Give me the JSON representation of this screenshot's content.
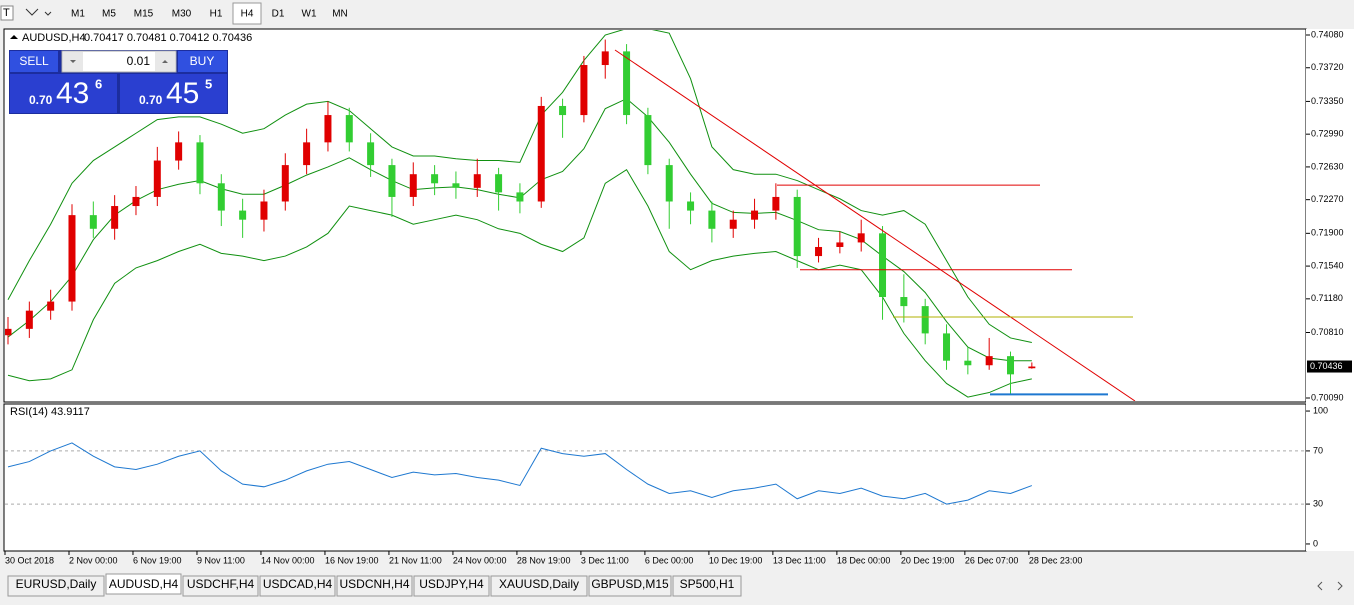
{
  "toolbar": {
    "timeframes": [
      "M1",
      "M5",
      "M15",
      "M30",
      "H1",
      "H4",
      "D1",
      "W1",
      "MN"
    ]
  },
  "trade_panel": {
    "sell": "SELL",
    "buy": "BUY",
    "lots": "0.01",
    "bid_prefix": "0.70",
    "bid_big": "43",
    "bid_small": "6",
    "ask_prefix": "0.70",
    "ask_big": "45",
    "ask_small": "5"
  },
  "tabs": [
    "EURUSD,Daily",
    "AUDUSD,H4",
    "USDCHF,H4",
    "USDCAD,H4",
    "USDCNH,H4",
    "USDJPY,H4",
    "XAUUSD,Daily",
    "GBPUSD,M15",
    "SP500,H1"
  ],
  "chart_data": [
    {
      "type": "candlestick",
      "title": "AUDUSD,H4",
      "ohlc_text": "0.70417 0.70481 0.70412 0.70436",
      "categories": [
        "30 Oct 2018",
        null,
        null,
        "2 Nov 00:00",
        null,
        null,
        "6 Nov 19:00",
        null,
        null,
        "9 Nov 11:00",
        null,
        null,
        "14 Nov 00:00",
        null,
        null,
        "16 Nov 19:00",
        null,
        null,
        "21 Nov 11:00",
        null,
        null,
        "24 Nov 00:00",
        null,
        null,
        "28 Nov 19:00",
        null,
        null,
        "3 Dec 11:00",
        null,
        null,
        "6 Dec 00:00",
        null,
        null,
        "10 Dec 19:00",
        null,
        null,
        "13 Dec 11:00",
        null,
        null,
        "18 Dec 00:00",
        null,
        null,
        "20 Dec 19:00",
        null,
        null,
        "26 Dec 07:00",
        null,
        null,
        "28 Dec 23:00"
      ],
      "candles": [
        {
          "o": 0.7078,
          "h": 0.7098,
          "l": 0.7068,
          "c": 0.7085
        },
        {
          "o": 0.7085,
          "h": 0.7115,
          "l": 0.7075,
          "c": 0.7105
        },
        {
          "o": 0.7105,
          "h": 0.7128,
          "l": 0.7095,
          "c": 0.7115
        },
        {
          "o": 0.7115,
          "h": 0.7222,
          "l": 0.7105,
          "c": 0.721
        },
        {
          "o": 0.721,
          "h": 0.7225,
          "l": 0.7185,
          "c": 0.7195
        },
        {
          "o": 0.7195,
          "h": 0.7232,
          "l": 0.7183,
          "c": 0.722
        },
        {
          "o": 0.722,
          "h": 0.7242,
          "l": 0.721,
          "c": 0.723
        },
        {
          "o": 0.723,
          "h": 0.7285,
          "l": 0.722,
          "c": 0.727
        },
        {
          "o": 0.727,
          "h": 0.7302,
          "l": 0.726,
          "c": 0.729
        },
        {
          "o": 0.729,
          "h": 0.7298,
          "l": 0.7233,
          "c": 0.7245
        },
        {
          "o": 0.7245,
          "h": 0.7255,
          "l": 0.7198,
          "c": 0.7215
        },
        {
          "o": 0.7215,
          "h": 0.7228,
          "l": 0.7185,
          "c": 0.7205
        },
        {
          "o": 0.7205,
          "h": 0.7238,
          "l": 0.7192,
          "c": 0.7225
        },
        {
          "o": 0.7225,
          "h": 0.7278,
          "l": 0.7215,
          "c": 0.7265
        },
        {
          "o": 0.7265,
          "h": 0.7305,
          "l": 0.7255,
          "c": 0.729
        },
        {
          "o": 0.729,
          "h": 0.7335,
          "l": 0.728,
          "c": 0.732
        },
        {
          "o": 0.732,
          "h": 0.7328,
          "l": 0.728,
          "c": 0.729
        },
        {
          "o": 0.729,
          "h": 0.73,
          "l": 0.7252,
          "c": 0.7265
        },
        {
          "o": 0.7265,
          "h": 0.7272,
          "l": 0.7208,
          "c": 0.723
        },
        {
          "o": 0.723,
          "h": 0.7268,
          "l": 0.722,
          "c": 0.7255
        },
        {
          "o": 0.7255,
          "h": 0.7265,
          "l": 0.7232,
          "c": 0.7245
        },
        {
          "o": 0.7245,
          "h": 0.7258,
          "l": 0.7228,
          "c": 0.724
        },
        {
          "o": 0.724,
          "h": 0.7272,
          "l": 0.723,
          "c": 0.7255
        },
        {
          "o": 0.7255,
          "h": 0.7262,
          "l": 0.7215,
          "c": 0.7235
        },
        {
          "o": 0.7235,
          "h": 0.7245,
          "l": 0.7212,
          "c": 0.7225
        },
        {
          "o": 0.7225,
          "h": 0.734,
          "l": 0.7218,
          "c": 0.733
        },
        {
          "o": 0.733,
          "h": 0.7338,
          "l": 0.7295,
          "c": 0.732
        },
        {
          "o": 0.732,
          "h": 0.7385,
          "l": 0.7312,
          "c": 0.7375
        },
        {
          "o": 0.7375,
          "h": 0.7403,
          "l": 0.736,
          "c": 0.739
        },
        {
          "o": 0.739,
          "h": 0.7398,
          "l": 0.731,
          "c": 0.732
        },
        {
          "o": 0.732,
          "h": 0.7328,
          "l": 0.7255,
          "c": 0.7265
        },
        {
          "o": 0.7265,
          "h": 0.7272,
          "l": 0.7195,
          "c": 0.7225
        },
        {
          "o": 0.7225,
          "h": 0.7235,
          "l": 0.72,
          "c": 0.7215
        },
        {
          "o": 0.7215,
          "h": 0.7225,
          "l": 0.718,
          "c": 0.7195
        },
        {
          "o": 0.7195,
          "h": 0.7215,
          "l": 0.7185,
          "c": 0.7205
        },
        {
          "o": 0.7205,
          "h": 0.7228,
          "l": 0.7195,
          "c": 0.7215
        },
        {
          "o": 0.7215,
          "h": 0.7245,
          "l": 0.7205,
          "c": 0.723
        },
        {
          "o": 0.723,
          "h": 0.7238,
          "l": 0.7152,
          "c": 0.7165
        },
        {
          "o": 0.7165,
          "h": 0.7185,
          "l": 0.7158,
          "c": 0.7175
        },
        {
          "o": 0.7175,
          "h": 0.7192,
          "l": 0.7168,
          "c": 0.718
        },
        {
          "o": 0.718,
          "h": 0.7205,
          "l": 0.717,
          "c": 0.719
        },
        {
          "o": 0.719,
          "h": 0.7198,
          "l": 0.7095,
          "c": 0.712
        },
        {
          "o": 0.712,
          "h": 0.7145,
          "l": 0.7092,
          "c": 0.711
        },
        {
          "o": 0.711,
          "h": 0.7118,
          "l": 0.7068,
          "c": 0.708
        },
        {
          "o": 0.708,
          "h": 0.709,
          "l": 0.704,
          "c": 0.705
        },
        {
          "o": 0.705,
          "h": 0.7065,
          "l": 0.7035,
          "c": 0.7045
        },
        {
          "o": 0.7045,
          "h": 0.7075,
          "l": 0.704,
          "c": 0.7055
        },
        {
          "o": 0.7055,
          "h": 0.706,
          "l": 0.7013,
          "c": 0.7035
        },
        {
          "o": 0.70417,
          "h": 0.70481,
          "l": 0.70412,
          "c": 0.70436
        }
      ],
      "bull_color": "#e00000",
      "bear_color": "#32cd32",
      "band_color": "#109010",
      "bands": {
        "upper": [
          0.7117,
          0.716,
          0.72,
          0.7245,
          0.727,
          0.7285,
          0.73,
          0.7315,
          0.7318,
          0.7318,
          0.731,
          0.73,
          0.7305,
          0.732,
          0.7332,
          0.7335,
          0.7325,
          0.7305,
          0.7285,
          0.7275,
          0.7275,
          0.7272,
          0.727,
          0.727,
          0.7268,
          0.732,
          0.7345,
          0.738,
          0.7408,
          0.7415,
          0.7415,
          0.741,
          0.736,
          0.7285,
          0.726,
          0.7255,
          0.7255,
          0.7248,
          0.7238,
          0.7228,
          0.7215,
          0.721,
          0.7215,
          0.72,
          0.716,
          0.712,
          0.709,
          0.7075,
          0.707
        ],
        "middle": [
          0.7076,
          0.7094,
          0.7115,
          0.7143,
          0.7183,
          0.721,
          0.7226,
          0.7238,
          0.7244,
          0.7248,
          0.7239,
          0.7233,
          0.7233,
          0.7243,
          0.7254,
          0.7263,
          0.7273,
          0.726,
          0.7248,
          0.7238,
          0.724,
          0.7241,
          0.7238,
          0.7233,
          0.7229,
          0.7249,
          0.7258,
          0.7283,
          0.7327,
          0.7338,
          0.7318,
          0.729,
          0.7255,
          0.7223,
          0.7213,
          0.7212,
          0.7213,
          0.7204,
          0.7194,
          0.7192,
          0.7183,
          0.7165,
          0.7148,
          0.7125,
          0.7093,
          0.7065,
          0.7053,
          0.705,
          0.705
        ],
        "lower": [
          0.7034,
          0.7028,
          0.703,
          0.704,
          0.7095,
          0.7135,
          0.7152,
          0.716,
          0.717,
          0.7178,
          0.7168,
          0.7165,
          0.716,
          0.7165,
          0.7175,
          0.719,
          0.722,
          0.7215,
          0.721,
          0.72,
          0.7205,
          0.721,
          0.7205,
          0.7195,
          0.719,
          0.7178,
          0.717,
          0.7185,
          0.7245,
          0.726,
          0.722,
          0.717,
          0.715,
          0.716,
          0.7165,
          0.7168,
          0.717,
          0.716,
          0.715,
          0.7155,
          0.715,
          0.712,
          0.708,
          0.705,
          0.7025,
          0.701,
          0.7015,
          0.7025,
          0.703
        ]
      },
      "ylim": [
        0.70057,
        0.74135
      ],
      "yticks": [
        {
          "value": 0.7408,
          "label": "0.74080"
        },
        {
          "value": 0.7372,
          "label": "0.73720"
        },
        {
          "value": 0.7335,
          "label": "0.73350"
        },
        {
          "value": 0.7299,
          "label": "0.72990"
        },
        {
          "value": 0.7263,
          "label": "0.72630"
        },
        {
          "value": 0.7227,
          "label": "0.72270"
        },
        {
          "value": 0.719,
          "label": "0.71900"
        },
        {
          "value": 0.7154,
          "label": "0.71540"
        },
        {
          "value": 0.7118,
          "label": "0.71180"
        },
        {
          "value": 0.7081,
          "label": "0.70810"
        },
        {
          "value": 0.7009,
          "label": "0.70090"
        }
      ],
      "current_price": {
        "value": 0.70436,
        "label": "0.70436"
      },
      "lines": [
        {
          "color": "#e00000",
          "y": [
            0.73915,
            0.70057
          ]
        },
        {
          "color": "#e00000",
          "y": [
            0.7243
          ]
        },
        {
          "color": "#e00000",
          "y": [
            0.715
          ]
        },
        {
          "color": "#b0b000",
          "y": [
            0.7098
          ]
        },
        {
          "color": "#1e78d0",
          "y": [
            0.7013
          ]
        }
      ]
    },
    {
      "type": "line",
      "title": "RSI(14) 43.9117",
      "color": "#1e78d0",
      "values": [
        58,
        62,
        70,
        76,
        66,
        58,
        56,
        60,
        66,
        70,
        55,
        45,
        43,
        48,
        55,
        60,
        62,
        56,
        50,
        54,
        52,
        53,
        50,
        48,
        44,
        72,
        68,
        66,
        68,
        56,
        45,
        38,
        40,
        35,
        40,
        42,
        45,
        34,
        40,
        38,
        42,
        36,
        34,
        38,
        30,
        33,
        40,
        38,
        43.9117
      ],
      "ylim": [
        -5.3,
        105.3
      ],
      "yticks": [
        100,
        70,
        30,
        0
      ],
      "levels": [
        70,
        30
      ]
    }
  ]
}
